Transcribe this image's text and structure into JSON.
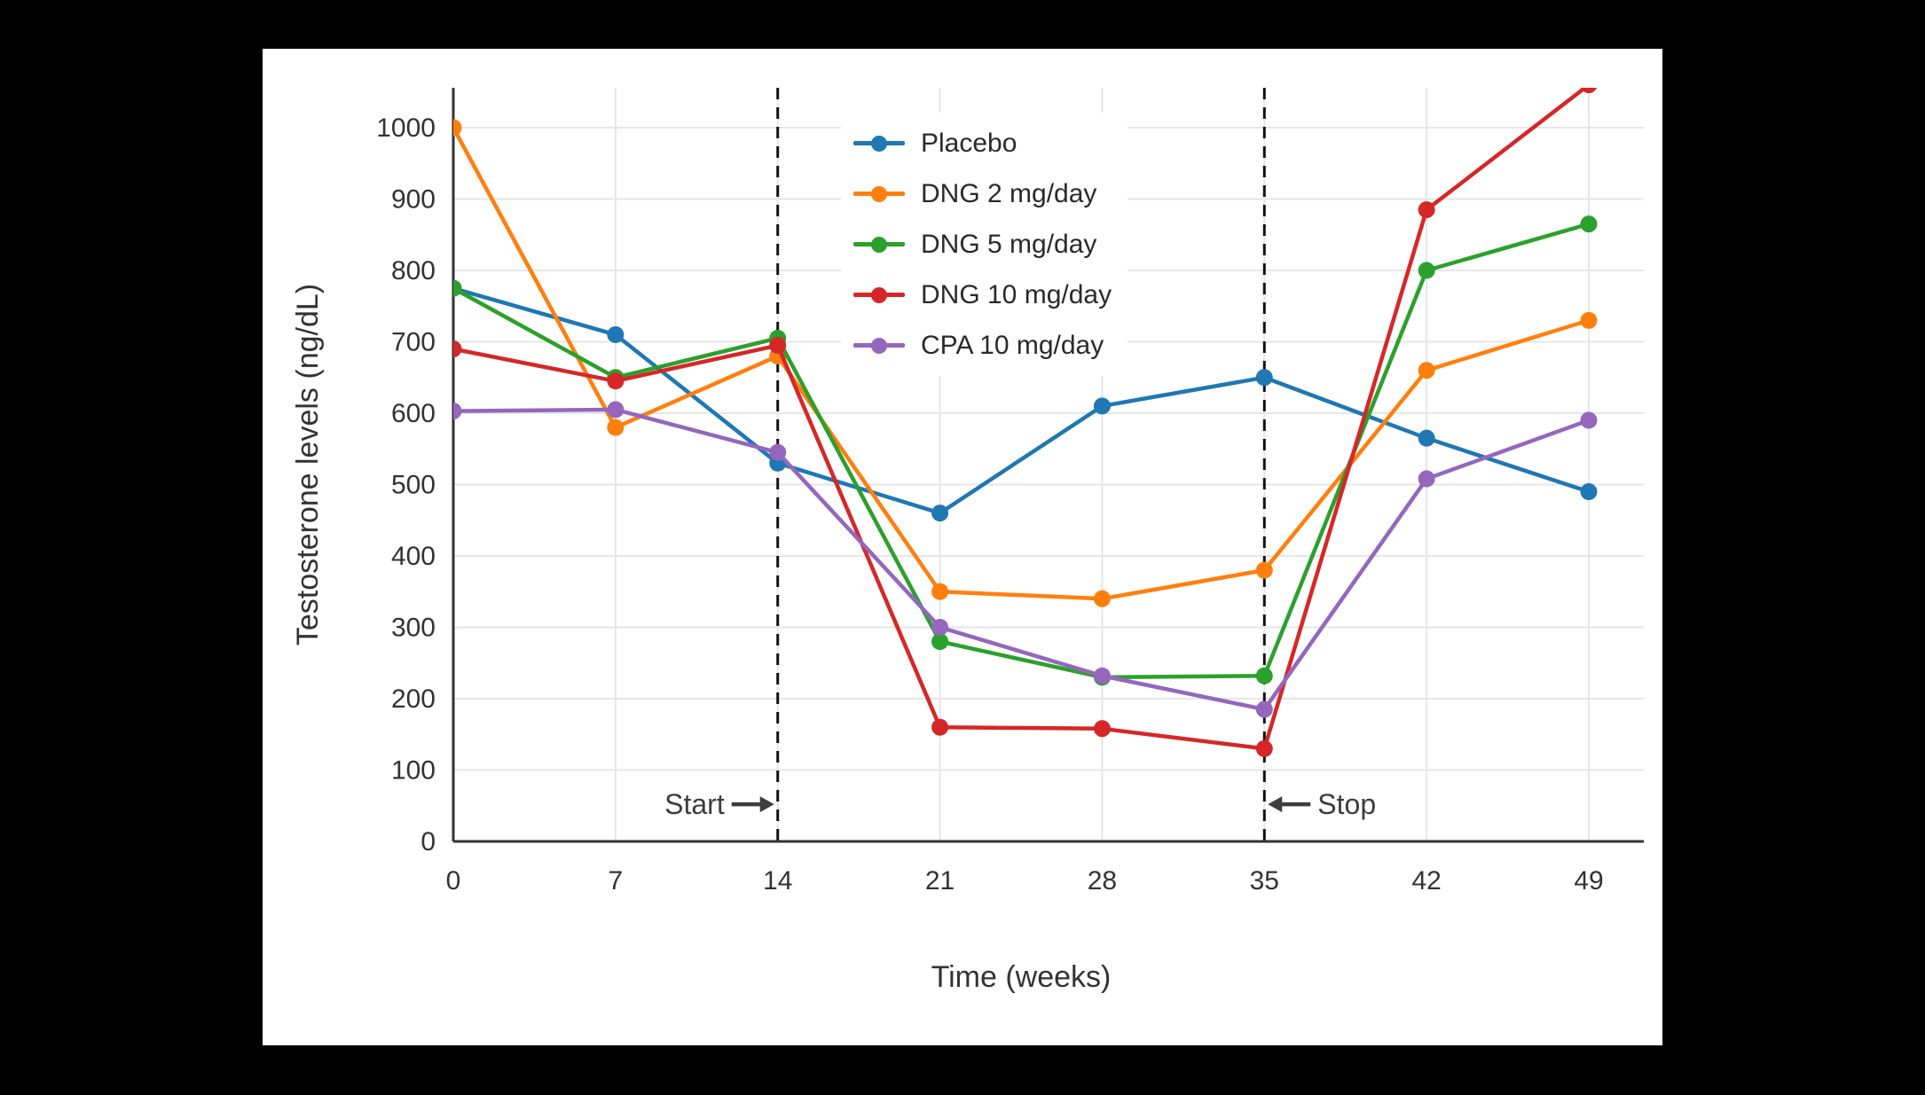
{
  "window": {
    "background": "#000000"
  },
  "card": {
    "background": "#ffffff"
  },
  "chart_data": {
    "type": "line",
    "title": "",
    "xlabel": "Time (weeks)",
    "ylabel": "Testosterone levels (ng/dL)",
    "x": [
      0,
      7,
      14,
      21,
      28,
      35,
      42,
      49
    ],
    "x_tick_labels": [
      "0",
      "7",
      "14",
      "21",
      "28",
      "35",
      "42",
      "49"
    ],
    "yticks": [
      0,
      100,
      200,
      300,
      400,
      500,
      600,
      700,
      800,
      900,
      1000
    ],
    "y_tick_labels": [
      "0",
      "100",
      "200",
      "300",
      "400",
      "500",
      "600",
      "700",
      "800",
      "900",
      "1000"
    ],
    "ylim": [
      0,
      1056
    ],
    "xlim": [
      0,
      51.4
    ],
    "grid": true,
    "legend_position": "inside-top-center",
    "series": [
      {
        "name": "Placebo",
        "color": "#1f77b4",
        "values": [
          775,
          710,
          530,
          460,
          610,
          650,
          565,
          490
        ]
      },
      {
        "name": "DNG 2 mg/day",
        "color": "#ff7f0e",
        "values": [
          1000,
          580,
          680,
          350,
          340,
          380,
          660,
          730
        ]
      },
      {
        "name": "DNG 5 mg/day",
        "color": "#2ca02c",
        "values": [
          775,
          650,
          705,
          280,
          230,
          232,
          800,
          865
        ]
      },
      {
        "name": "DNG 10 mg/day",
        "color": "#d62728",
        "values": [
          690,
          645,
          695,
          160,
          158,
          130,
          885,
          1060
        ]
      },
      {
        "name": "CPA 10 mg/day",
        "color": "#9467bd",
        "values": [
          603,
          605,
          545,
          300,
          232,
          185,
          508,
          590
        ]
      }
    ],
    "vlines": [
      {
        "x": 14,
        "label": "Start",
        "label_side": "left"
      },
      {
        "x": 35,
        "label": "Stop",
        "label_side": "right"
      }
    ],
    "annotation_y": 52,
    "colors": {
      "grid": "#e6e6e6",
      "axis": "#333333",
      "tick_label": "#333333",
      "axis_title": "#333333",
      "vline": "#111111",
      "annotation": "#3d3d3d"
    }
  }
}
